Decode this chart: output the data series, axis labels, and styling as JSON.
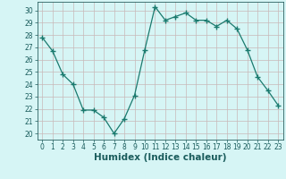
{
  "x": [
    0,
    1,
    2,
    3,
    4,
    5,
    6,
    7,
    8,
    9,
    10,
    11,
    12,
    13,
    14,
    15,
    16,
    17,
    18,
    19,
    20,
    21,
    22,
    23
  ],
  "y": [
    27.8,
    26.7,
    24.8,
    24.0,
    21.9,
    21.9,
    21.3,
    20.0,
    21.2,
    23.1,
    26.8,
    30.3,
    29.2,
    29.5,
    29.8,
    29.2,
    29.2,
    28.7,
    29.2,
    28.5,
    26.8,
    24.6,
    23.5,
    22.3
  ],
  "line_color": "#1a7a6e",
  "marker": "+",
  "marker_size": 4,
  "bg_color": "#d6f5f5",
  "grid_color": "#c8b8b8",
  "xlabel": "Humidex (Indice chaleur)",
  "xlim": [
    -0.5,
    23.5
  ],
  "ylim": [
    19.5,
    30.7
  ],
  "yticks": [
    20,
    21,
    22,
    23,
    24,
    25,
    26,
    27,
    28,
    29,
    30
  ],
  "xticks": [
    0,
    1,
    2,
    3,
    4,
    5,
    6,
    7,
    8,
    9,
    10,
    11,
    12,
    13,
    14,
    15,
    16,
    17,
    18,
    19,
    20,
    21,
    22,
    23
  ],
  "tick_fontsize": 5.5,
  "label_fontsize": 7.5,
  "axis_color": "#1a5c5c",
  "spine_color": "#2a6060"
}
